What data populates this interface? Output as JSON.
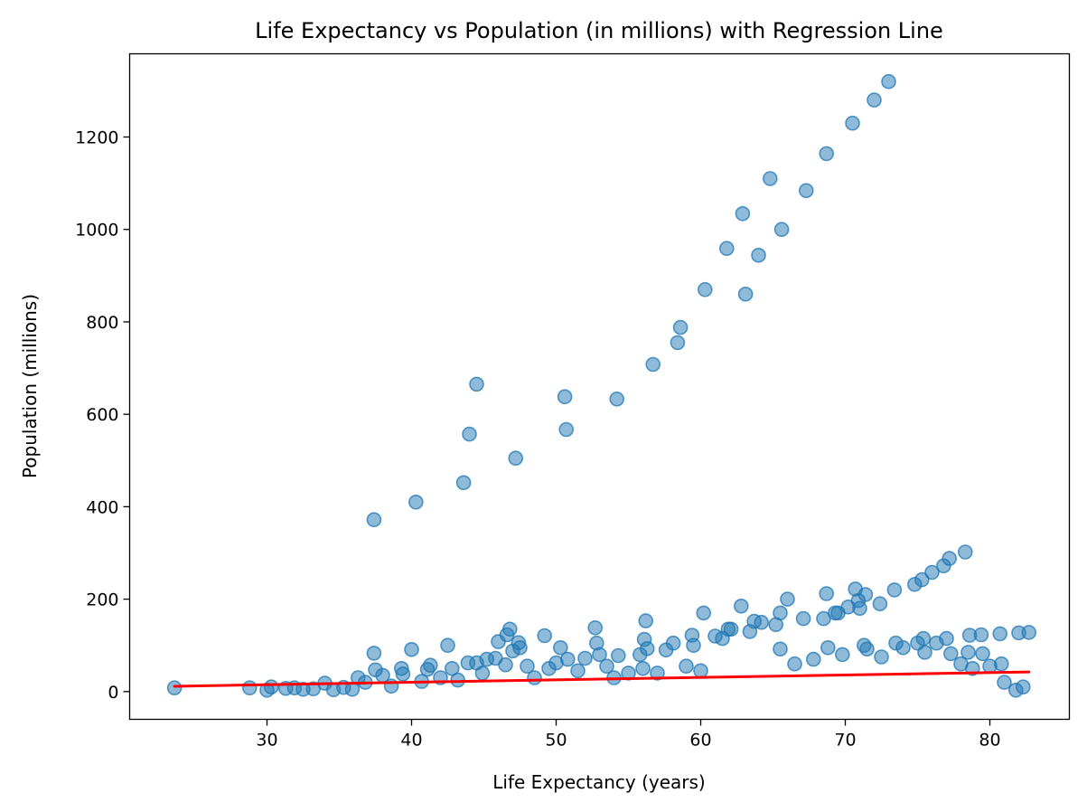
{
  "chart_data": {
    "type": "scatter",
    "title": "Life Expectancy vs Population (in millions) with Regression Line",
    "xlabel": "Life Expectancy (years)",
    "ylabel": "Population (millions)",
    "xlim": [
      20.5,
      85.5
    ],
    "ylim": [
      -60,
      1380
    ],
    "xticks": [
      30,
      40,
      50,
      60,
      70,
      80
    ],
    "yticks": [
      0,
      200,
      400,
      600,
      800,
      1000,
      1200
    ],
    "grid": false,
    "legend": "none",
    "point_color": "#1f77b4",
    "line_color": "#ff0000",
    "series": [
      {
        "kind": "scatter",
        "points": [
          [
            23.6,
            8
          ],
          [
            28.8,
            8
          ],
          [
            30.0,
            3
          ],
          [
            30.3,
            10
          ],
          [
            31.3,
            7
          ],
          [
            31.9,
            8
          ],
          [
            32.5,
            5
          ],
          [
            33.2,
            6
          ],
          [
            34.0,
            18
          ],
          [
            34.6,
            4
          ],
          [
            35.3,
            9
          ],
          [
            35.9,
            5
          ],
          [
            36.3,
            30
          ],
          [
            36.8,
            20
          ],
          [
            37.4,
            372
          ],
          [
            37.4,
            83
          ],
          [
            37.5,
            47
          ],
          [
            38.0,
            35
          ],
          [
            38.6,
            12
          ],
          [
            39.3,
            50
          ],
          [
            39.4,
            38
          ],
          [
            40.0,
            91
          ],
          [
            40.3,
            410
          ],
          [
            40.7,
            22
          ],
          [
            41.1,
            48
          ],
          [
            41.3,
            57
          ],
          [
            42.0,
            30
          ],
          [
            42.5,
            100
          ],
          [
            42.8,
            50
          ],
          [
            43.2,
            25
          ],
          [
            43.6,
            452
          ],
          [
            43.9,
            62
          ],
          [
            44.0,
            557
          ],
          [
            44.5,
            665
          ],
          [
            44.5,
            62
          ],
          [
            44.9,
            40
          ],
          [
            45.2,
            70
          ],
          [
            45.8,
            72
          ],
          [
            46.0,
            108
          ],
          [
            46.5,
            58
          ],
          [
            46.6,
            123
          ],
          [
            46.8,
            135
          ],
          [
            47.0,
            88
          ],
          [
            47.2,
            505
          ],
          [
            47.4,
            106
          ],
          [
            47.5,
            95
          ],
          [
            48.0,
            55
          ],
          [
            48.5,
            30
          ],
          [
            49.2,
            121
          ],
          [
            49.5,
            50
          ],
          [
            50.0,
            62
          ],
          [
            50.3,
            95
          ],
          [
            50.6,
            638
          ],
          [
            50.7,
            567
          ],
          [
            50.8,
            70
          ],
          [
            51.5,
            45
          ],
          [
            52.0,
            72
          ],
          [
            52.7,
            138
          ],
          [
            52.8,
            105
          ],
          [
            53.0,
            80
          ],
          [
            53.5,
            55
          ],
          [
            54.0,
            30
          ],
          [
            54.2,
            633
          ],
          [
            54.3,
            78
          ],
          [
            55.0,
            40
          ],
          [
            55.8,
            80
          ],
          [
            56.0,
            50
          ],
          [
            56.1,
            113
          ],
          [
            56.2,
            153
          ],
          [
            56.3,
            93
          ],
          [
            56.7,
            708
          ],
          [
            57.0,
            40
          ],
          [
            57.6,
            90
          ],
          [
            58.1,
            105
          ],
          [
            58.4,
            755
          ],
          [
            58.6,
            788
          ],
          [
            59.0,
            55
          ],
          [
            59.4,
            122
          ],
          [
            59.5,
            100
          ],
          [
            60.0,
            45
          ],
          [
            60.2,
            170
          ],
          [
            60.3,
            870
          ],
          [
            61.0,
            120
          ],
          [
            61.5,
            115
          ],
          [
            61.8,
            959
          ],
          [
            61.9,
            135
          ],
          [
            62.1,
            135
          ],
          [
            62.8,
            185
          ],
          [
            62.9,
            1034
          ],
          [
            63.1,
            860
          ],
          [
            63.4,
            130
          ],
          [
            63.7,
            152
          ],
          [
            64.0,
            944
          ],
          [
            64.2,
            150
          ],
          [
            64.8,
            1110
          ],
          [
            65.2,
            145
          ],
          [
            65.5,
            170
          ],
          [
            65.6,
            1000
          ],
          [
            65.5,
            92
          ],
          [
            66.0,
            200
          ],
          [
            66.5,
            60
          ],
          [
            67.1,
            158
          ],
          [
            67.3,
            1084
          ],
          [
            67.8,
            70
          ],
          [
            68.5,
            158
          ],
          [
            68.7,
            212
          ],
          [
            68.7,
            1164
          ],
          [
            68.8,
            95
          ],
          [
            69.3,
            170
          ],
          [
            69.5,
            170
          ],
          [
            69.8,
            80
          ],
          [
            70.2,
            183
          ],
          [
            70.5,
            1230
          ],
          [
            70.7,
            222
          ],
          [
            70.9,
            197
          ],
          [
            71.0,
            180
          ],
          [
            71.3,
            100
          ],
          [
            71.4,
            210
          ],
          [
            71.5,
            92
          ],
          [
            72.0,
            1280
          ],
          [
            72.4,
            190
          ],
          [
            72.5,
            75
          ],
          [
            73.0,
            1320
          ],
          [
            73.4,
            220
          ],
          [
            73.5,
            105
          ],
          [
            74.0,
            95
          ],
          [
            74.8,
            232
          ],
          [
            75.0,
            105
          ],
          [
            75.3,
            242
          ],
          [
            75.4,
            115
          ],
          [
            75.5,
            85
          ],
          [
            76.0,
            258
          ],
          [
            76.3,
            105
          ],
          [
            76.8,
            272
          ],
          [
            77.0,
            115
          ],
          [
            77.2,
            288
          ],
          [
            77.3,
            82
          ],
          [
            78.0,
            60
          ],
          [
            78.3,
            302
          ],
          [
            78.5,
            85
          ],
          [
            78.6,
            122
          ],
          [
            78.8,
            50
          ],
          [
            79.4,
            123
          ],
          [
            79.5,
            82
          ],
          [
            80.0,
            55
          ],
          [
            80.7,
            125
          ],
          [
            80.8,
            60
          ],
          [
            81.0,
            20
          ],
          [
            81.8,
            3
          ],
          [
            82.0,
            127
          ],
          [
            82.3,
            10
          ],
          [
            82.7,
            128
          ]
        ]
      },
      {
        "kind": "line",
        "points": [
          [
            23.6,
            11.5
          ],
          [
            82.7,
            42.5
          ]
        ]
      }
    ]
  }
}
